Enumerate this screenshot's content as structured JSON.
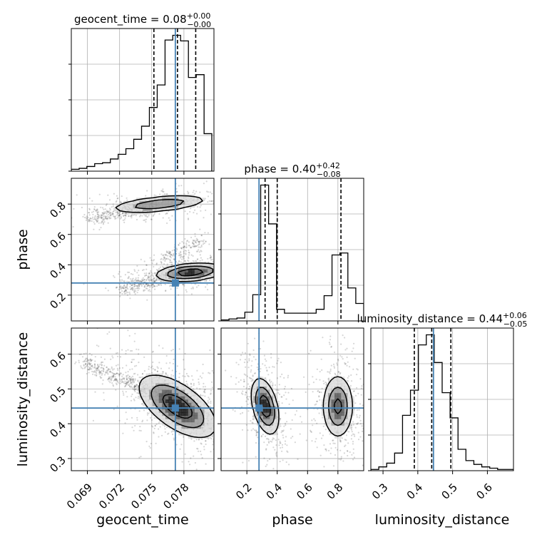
{
  "chart_data": {
    "type": "corner",
    "truth_color": "#4682b4",
    "hist_color": "#000000",
    "density_color": "#000000",
    "grid": true,
    "parameters": [
      {
        "name": "geocent_time",
        "title": "geocent_time = 0.08",
        "title_sup": "+0.00",
        "title_sub": "−0.00",
        "axis_label": "geocent_time",
        "range": [
          0.0675,
          0.0808
        ],
        "ticks": [
          0.069,
          0.072,
          0.075,
          0.078
        ],
        "tick_labels": [
          "0.069",
          "0.072",
          "0.075",
          "0.078"
        ],
        "truth": 0.0772,
        "quantiles": [
          0.0752,
          0.0774,
          0.0791
        ]
      },
      {
        "name": "phase",
        "title": "phase = 0.40",
        "title_sup": "+0.42",
        "title_sub": "−0.08",
        "axis_label": "phase",
        "range": [
          0.03,
          0.97
        ],
        "ticks": [
          0.2,
          0.4,
          0.6,
          0.8
        ],
        "tick_labels": [
          "0.2",
          "0.4",
          "0.6",
          "0.8"
        ],
        "truth": 0.28,
        "quantiles": [
          0.32,
          0.4,
          0.82
        ]
      },
      {
        "name": "luminosity_distance",
        "title": "luminosity_distance = 0.44",
        "title_sup": "+0.06",
        "title_sub": "−0.05",
        "axis_label": "luminosity_distance",
        "range": [
          0.265,
          0.675
        ],
        "ticks": [
          0.3,
          0.4,
          0.5,
          0.6
        ],
        "tick_labels": [
          "0.3",
          "0.4",
          "0.5",
          "0.6"
        ],
        "truth": 0.445,
        "quantiles": [
          0.39,
          0.44,
          0.495
        ]
      }
    ],
    "histograms": [
      {
        "parameter": "geocent_time",
        "bin_edges": [
          0.0675,
          0.06823,
          0.06895,
          0.06968,
          0.07041,
          0.07114,
          0.07187,
          0.07259,
          0.07332,
          0.07405,
          0.07478,
          0.07551,
          0.07624,
          0.07696,
          0.07769,
          0.07842,
          0.07915,
          0.07988,
          0.0806
        ],
        "counts": [
          2,
          3,
          5,
          8,
          9,
          13,
          18,
          24,
          34,
          48,
          68,
          92,
          140,
          145,
          139,
          100,
          103,
          40
        ]
      },
      {
        "parameter": "phase",
        "bin_edges": [
          0.03,
          0.0822,
          0.1344,
          0.1867,
          0.2389,
          0.2911,
          0.3433,
          0.3956,
          0.4478,
          0.5,
          0.5522,
          0.6044,
          0.6567,
          0.7089,
          0.7611,
          0.8133,
          0.8656,
          0.9178,
          0.97
        ],
        "counts": [
          1,
          2,
          3,
          9,
          27,
          140,
          100,
          12,
          8,
          8,
          8,
          8,
          12,
          26,
          68,
          70,
          34,
          18
        ]
      },
      {
        "parameter": "luminosity_distance",
        "bin_edges": [
          0.265,
          0.2878,
          0.3106,
          0.3333,
          0.3561,
          0.3789,
          0.4017,
          0.4244,
          0.4472,
          0.47,
          0.4928,
          0.5156,
          0.5383,
          0.5611,
          0.5839,
          0.6067,
          0.6294,
          0.6522,
          0.675
        ],
        "counts": [
          1,
          3,
          6,
          14,
          44,
          64,
          100,
          108,
          86,
          62,
          42,
          17,
          8,
          5,
          3,
          2,
          1,
          1
        ]
      }
    ],
    "pairs": [
      {
        "x": "geocent_time",
        "y": "phase",
        "modes": [
          {
            "x": 0.0757,
            "y": 0.8,
            "sx": 0.0023,
            "sy": 0.03,
            "rho": 0.5,
            "w": 0.4
          },
          {
            "x": 0.0786,
            "y": 0.35,
            "sx": 0.0016,
            "sy": 0.03,
            "rho": 0.3,
            "w": 0.6
          }
        ],
        "tails": [
          {
            "x0": 0.069,
            "y0": 0.7,
            "x1": 0.0755,
            "y1": 0.79,
            "n": 320
          },
          {
            "x0": 0.072,
            "y0": 0.24,
            "x1": 0.078,
            "y1": 0.34,
            "n": 320
          },
          {
            "x0": 0.076,
            "y0": 0.45,
            "x1": 0.08,
            "y1": 0.56,
            "n": 150
          }
        ]
      },
      {
        "x": "geocent_time",
        "y": "luminosity_distance",
        "modes": [
          {
            "x": 0.0774,
            "y": 0.45,
            "sx": 0.0018,
            "sy": 0.045,
            "rho": -0.6,
            "w": 1.0
          }
        ],
        "tails": [
          {
            "x0": 0.0685,
            "y0": 0.58,
            "x1": 0.077,
            "y1": 0.46,
            "n": 420
          }
        ]
      },
      {
        "x": "phase",
        "y": "luminosity_distance",
        "modes": [
          {
            "x": 0.32,
            "y": 0.45,
            "sx": 0.045,
            "sy": 0.04,
            "rho": -0.4,
            "w": 0.55
          },
          {
            "x": 0.8,
            "y": 0.45,
            "sx": 0.05,
            "sy": 0.045,
            "rho": 0.0,
            "w": 0.45
          }
        ],
        "tails": []
      }
    ]
  }
}
